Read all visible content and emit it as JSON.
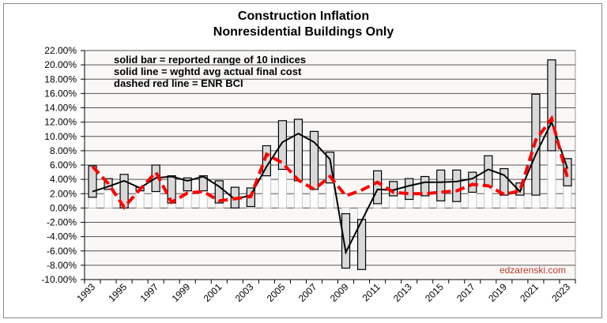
{
  "chart_data": {
    "type": "bar",
    "title": "Construction  Inflation",
    "subtitle": "Nonresidential Buildings Only",
    "xlabel": "",
    "ylabel": "",
    "ylim": [
      -10,
      22
    ],
    "yticks": [
      "22.00%",
      "20.00%",
      "18.00%",
      "16.00%",
      "14.00%",
      "12.00%",
      "10.00%",
      "8.00%",
      "6.00%",
      "4.00%",
      "2.00%",
      "0.00%",
      "-2.00%",
      "-4.00%",
      "-6.00%",
      "-8.00%",
      "-10.00%"
    ],
    "categories": [
      1993,
      1994,
      1995,
      1996,
      1997,
      1998,
      1999,
      2000,
      2001,
      2002,
      2003,
      2004,
      2005,
      2006,
      2007,
      2008,
      2009,
      2010,
      2011,
      2012,
      2013,
      2014,
      2015,
      2016,
      2017,
      2018,
      2019,
      2020,
      2021,
      2022,
      2023
    ],
    "xtick_labels": [
      "1993",
      "1995",
      "1997",
      "1999",
      "2001",
      "2003",
      "2005",
      "2007",
      "2009",
      "2011",
      "2013",
      "2015",
      "2017",
      "2019",
      "2021",
      "2023"
    ],
    "grid": true,
    "annotations": [
      "solid bar = reported range of 10 indices",
      "solid line = wghtd avg actual final cost",
      "dashed red line = ENR BCI"
    ],
    "watermark": "edzarenski.com",
    "series": [
      {
        "name": "reported range of 10 indices",
        "type": "range-bar",
        "low": [
          1.5,
          2.6,
          0.0,
          2.4,
          2.3,
          0.7,
          2.4,
          2.4,
          0.7,
          0.0,
          0.2,
          4.5,
          5.4,
          3.8,
          2.6,
          3.5,
          -8.4,
          -8.6,
          0.6,
          1.7,
          1.2,
          1.7,
          1.0,
          0.9,
          2.2,
          3.0,
          1.8,
          1.8,
          1.8,
          8.0,
          3.1
        ],
        "high": [
          5.9,
          4.1,
          4.7,
          2.9,
          6.0,
          4.5,
          4.2,
          4.5,
          3.8,
          2.9,
          2.8,
          8.7,
          12.2,
          12.4,
          10.7,
          7.8,
          -0.8,
          -1.6,
          5.2,
          3.7,
          4.1,
          4.4,
          5.3,
          5.3,
          5.0,
          7.3,
          5.5,
          3.5,
          15.9,
          20.7,
          6.9
        ]
      },
      {
        "name": "wghtd avg actual final cost",
        "type": "line",
        "values": [
          2.3,
          3.0,
          3.8,
          2.8,
          4.2,
          4.4,
          3.8,
          4.4,
          3.0,
          1.2,
          1.8,
          5.8,
          9.2,
          10.4,
          9.2,
          6.8,
          -6.2,
          -1.8,
          2.6,
          2.5,
          3.1,
          3.6,
          3.6,
          3.7,
          4.1,
          5.4,
          4.6,
          2.3,
          7.5,
          12.0,
          5.5
        ]
      },
      {
        "name": "ENR BCI",
        "type": "dashed-line",
        "values": [
          5.8,
          3.4,
          0.1,
          2.6,
          5.0,
          0.8,
          2.1,
          2.3,
          1.0,
          1.3,
          1.6,
          7.5,
          6.3,
          3.9,
          2.6,
          4.4,
          1.7,
          2.5,
          3.6,
          2.2,
          2.0,
          2.0,
          2.2,
          2.4,
          3.3,
          3.1,
          1.9,
          2.4,
          9.5,
          12.5,
          4.2
        ]
      }
    ],
    "colors": {
      "range_bar": "#d9d9d9",
      "avg_line": "#000000",
      "enr_line": "#ff0000",
      "watermark": "#c0392b",
      "plot_bg": "#faf8f6"
    }
  }
}
